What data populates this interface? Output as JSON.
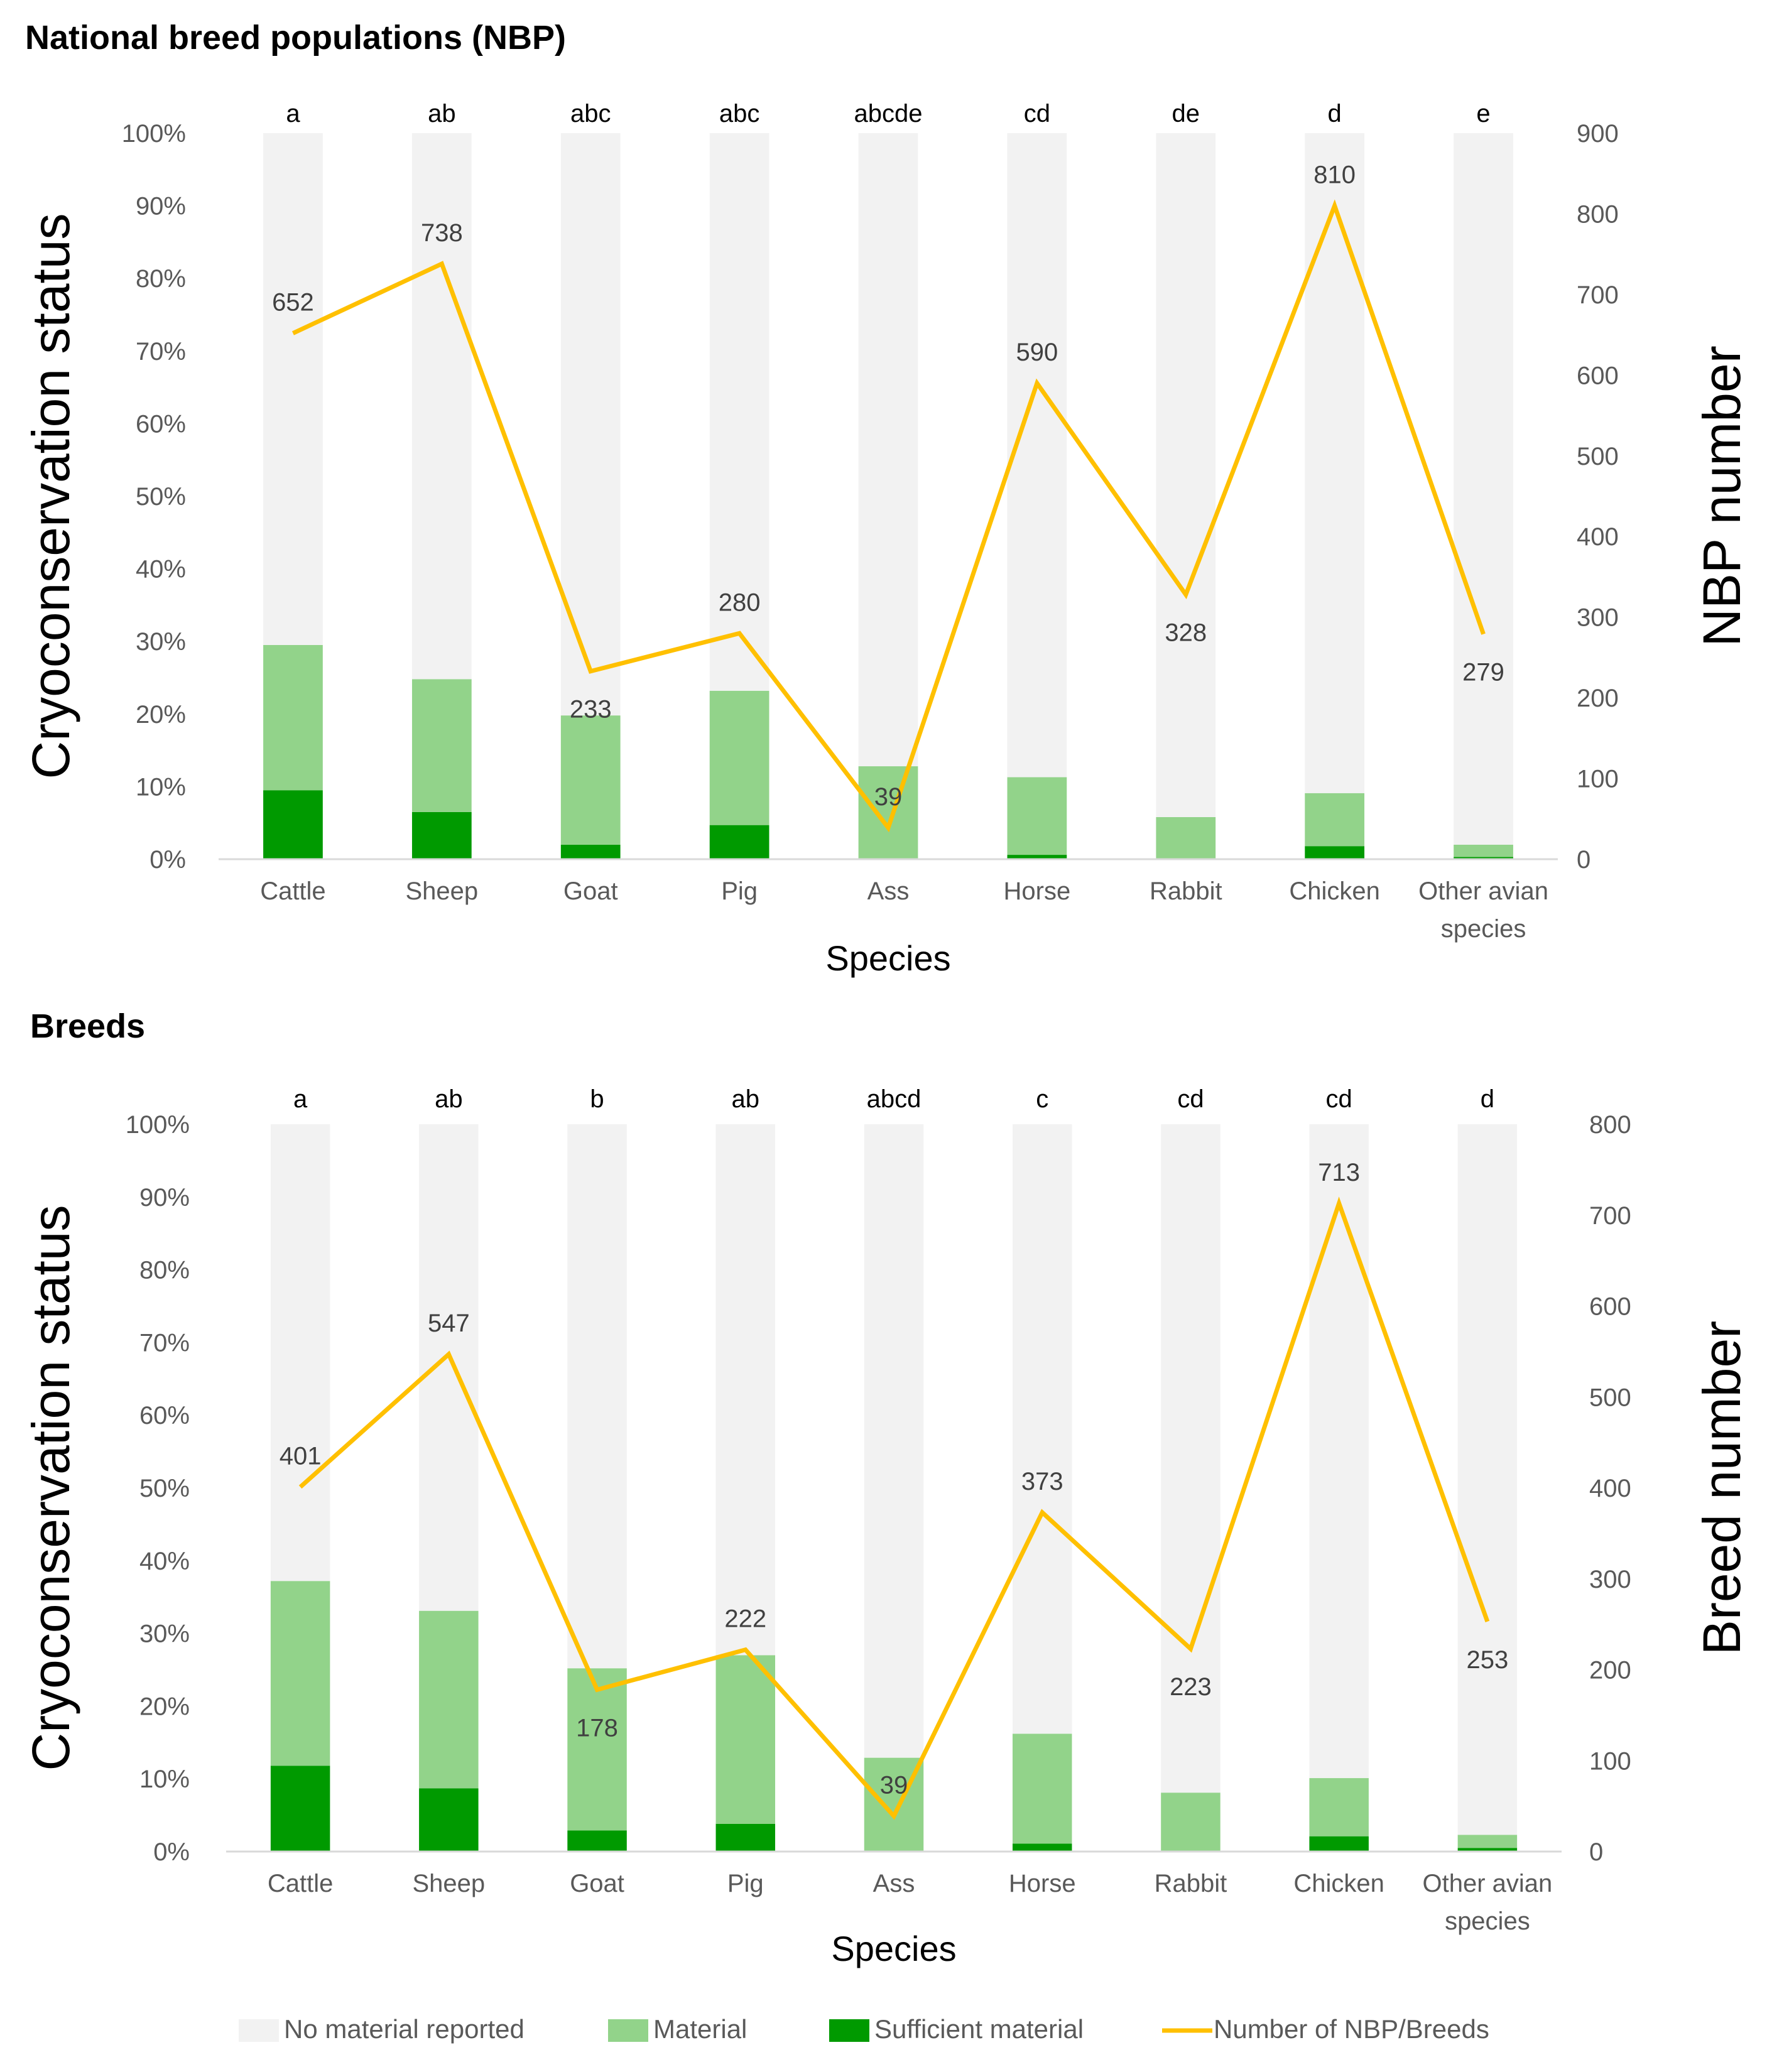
{
  "colors": {
    "no_material": "#f2f2f2",
    "material": "#92d38a",
    "sufficient": "#009a00",
    "line": "#ffc000"
  },
  "legend": [
    {
      "label": "No material reported",
      "swatch": "no_material"
    },
    {
      "label": "Material",
      "swatch": "material"
    },
    {
      "label": "Sufficient material",
      "swatch": "sufficient"
    },
    {
      "label": "Number of NBP/Breeds",
      "swatch": "line"
    }
  ],
  "chart_data": [
    {
      "type": "bar",
      "stacked": true,
      "title": "National breed populations   (NBP)",
      "categories": [
        "Cattle",
        "Sheep",
        "Goat",
        "Pig",
        "Ass",
        "Horse",
        "Rabbit",
        "Chicken",
        "Other avian species"
      ],
      "category_lines": [
        [
          "Cattle"
        ],
        [
          "Sheep"
        ],
        [
          "Goat"
        ],
        [
          "Pig"
        ],
        [
          "Ass"
        ],
        [
          "Horse"
        ],
        [
          "Rabbit"
        ],
        [
          "Chicken"
        ],
        [
          "Other avian",
          "species"
        ]
      ],
      "letters": [
        "a",
        "ab",
        "abc",
        "abc",
        "abcde",
        "cd",
        "de",
        "d",
        "e"
      ],
      "xlabel": "Species",
      "ylabel": "Cryoconservation status",
      "y2label": "NBP number",
      "ylim": [
        0,
        100
      ],
      "y_ticks": [
        "0%",
        "10%",
        "20%",
        "30%",
        "40%",
        "50%",
        "60%",
        "70%",
        "80%",
        "90%",
        "100%"
      ],
      "y2lim": [
        0,
        900
      ],
      "y2_ticks": [
        "0",
        "100",
        "200",
        "300",
        "400",
        "500",
        "600",
        "700",
        "800",
        "900"
      ],
      "series": [
        {
          "name": "Sufficient material",
          "values": [
            9.5,
            6.5,
            2,
            4.7,
            0,
            0.6,
            0,
            1.8,
            0.3
          ]
        },
        {
          "name": "Material",
          "values": [
            20,
            18.3,
            17.8,
            18.5,
            12.8,
            10.7,
            5.8,
            7.3,
            1.7
          ]
        },
        {
          "name": "No material reported",
          "values": [
            70.5,
            75.2,
            80.2,
            76.8,
            87.2,
            88.7,
            94.2,
            90.9,
            98
          ]
        }
      ],
      "line": {
        "name": "Number of NBP/Breeds",
        "values": [
          652,
          738,
          233,
          280,
          39,
          590,
          328,
          810,
          279
        ]
      },
      "line_labels": [
        "652",
        "738",
        "233",
        "280",
        "39",
        "590",
        "328",
        "810",
        "279"
      ],
      "label_pos": [
        "above",
        "above",
        "below",
        "above",
        "above",
        "above",
        "below",
        "above",
        "below"
      ],
      "grid": false
    },
    {
      "type": "bar",
      "stacked": true,
      "title": "Breeds",
      "categories": [
        "Cattle",
        "Sheep",
        "Goat",
        "Pig",
        "Ass",
        "Horse",
        "Rabbit",
        "Chicken",
        "Other avian species"
      ],
      "category_lines": [
        [
          "Cattle"
        ],
        [
          "Sheep"
        ],
        [
          "Goat"
        ],
        [
          "Pig"
        ],
        [
          "Ass"
        ],
        [
          "Horse"
        ],
        [
          "Rabbit"
        ],
        [
          "Chicken"
        ],
        [
          "Other avian",
          "species"
        ]
      ],
      "letters": [
        "a",
        "ab",
        "b",
        "ab",
        "abcd",
        "c",
        "cd",
        "cd",
        "d"
      ],
      "xlabel": "Species",
      "ylabel": "Cryoconservation status",
      "y2label": "Breed number",
      "ylim": [
        0,
        100
      ],
      "y_ticks": [
        "0%",
        "10%",
        "20%",
        "30%",
        "40%",
        "50%",
        "60%",
        "70%",
        "80%",
        "90%",
        "100%"
      ],
      "y2lim": [
        0,
        800
      ],
      "y2_ticks": [
        "0",
        "100",
        "200",
        "300",
        "400",
        "500",
        "600",
        "700",
        "800"
      ],
      "series": [
        {
          "name": "Sufficient material",
          "values": [
            11.8,
            8.7,
            2.9,
            3.8,
            0,
            1.1,
            0,
            2.1,
            0.5
          ]
        },
        {
          "name": "Material",
          "values": [
            25.4,
            24.4,
            22.3,
            23.2,
            12.9,
            15.1,
            8.1,
            8,
            1.8
          ]
        },
        {
          "name": "No material reported",
          "values": [
            62.8,
            66.9,
            74.8,
            73,
            87.1,
            83.8,
            91.9,
            89.9,
            97.7
          ]
        }
      ],
      "line": {
        "name": "Number of NBP/Breeds",
        "values": [
          401,
          547,
          178,
          222,
          39,
          373,
          223,
          713,
          253
        ]
      },
      "line_labels": [
        "401",
        "547",
        "178",
        "222",
        "39",
        "373",
        "223",
        "713",
        "253"
      ],
      "label_pos": [
        "above",
        "above",
        "below",
        "above",
        "above",
        "above",
        "below",
        "above",
        "below"
      ],
      "grid": false
    }
  ]
}
